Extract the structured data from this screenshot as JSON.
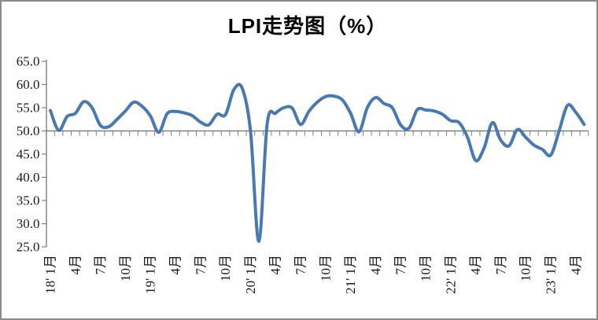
{
  "window": {
    "background": "#ffffff",
    "frame_border_color": "#8a8a8a"
  },
  "chart_data": {
    "type": "line",
    "title": "LPI走势图（%）",
    "x_start": "2018-01",
    "x_end": "2023-05",
    "x_interval": "monthly",
    "x_tick_label_every_n_months": 3,
    "x_tick_labels": [
      "18' 1月",
      "4月",
      "7月",
      "10月",
      "19' 1月",
      "4月",
      "7月",
      "10月",
      "20' 1月",
      "4月",
      "7月",
      "10月",
      "21' 1月",
      "4月",
      "7月",
      "10月",
      "22' 1月",
      "4月",
      "7月",
      "10月",
      "23' 1月",
      "4月"
    ],
    "y_ticks": [
      65.0,
      60.0,
      55.0,
      50.0,
      45.0,
      40.0,
      35.0,
      30.0,
      25.0
    ],
    "ylim": [
      25.0,
      65.0
    ],
    "x_axis_crosses_at": 50.0,
    "grid": false,
    "legend": "none",
    "smooth_line": true,
    "line_color": "#4879B0",
    "axis_color": "#808080",
    "tick_label_color": "#1a1a1a",
    "series": [
      {
        "name": "LPI",
        "values": [
          54.4,
          50.1,
          53.1,
          53.8,
          56.3,
          55.0,
          51.2,
          50.9,
          52.5,
          54.3,
          56.2,
          55.3,
          53.2,
          49.7,
          53.7,
          54.2,
          53.9,
          53.3,
          51.9,
          51.3,
          53.6,
          53.5,
          58.9,
          59.2,
          49.9,
          26.2,
          51.6,
          53.8,
          55.0,
          54.9,
          51.4,
          54.2,
          56.2,
          57.4,
          57.5,
          56.7,
          53.8,
          49.8,
          55.0,
          57.2,
          55.9,
          55.0,
          51.3,
          50.6,
          54.6,
          54.5,
          54.3,
          53.6,
          52.2,
          51.8,
          48.7,
          43.6,
          46.3,
          51.8,
          48.0,
          46.8,
          50.3,
          48.6,
          46.9,
          46.0,
          44.8,
          50.0,
          55.5,
          54.0,
          51.4
        ]
      }
    ]
  }
}
